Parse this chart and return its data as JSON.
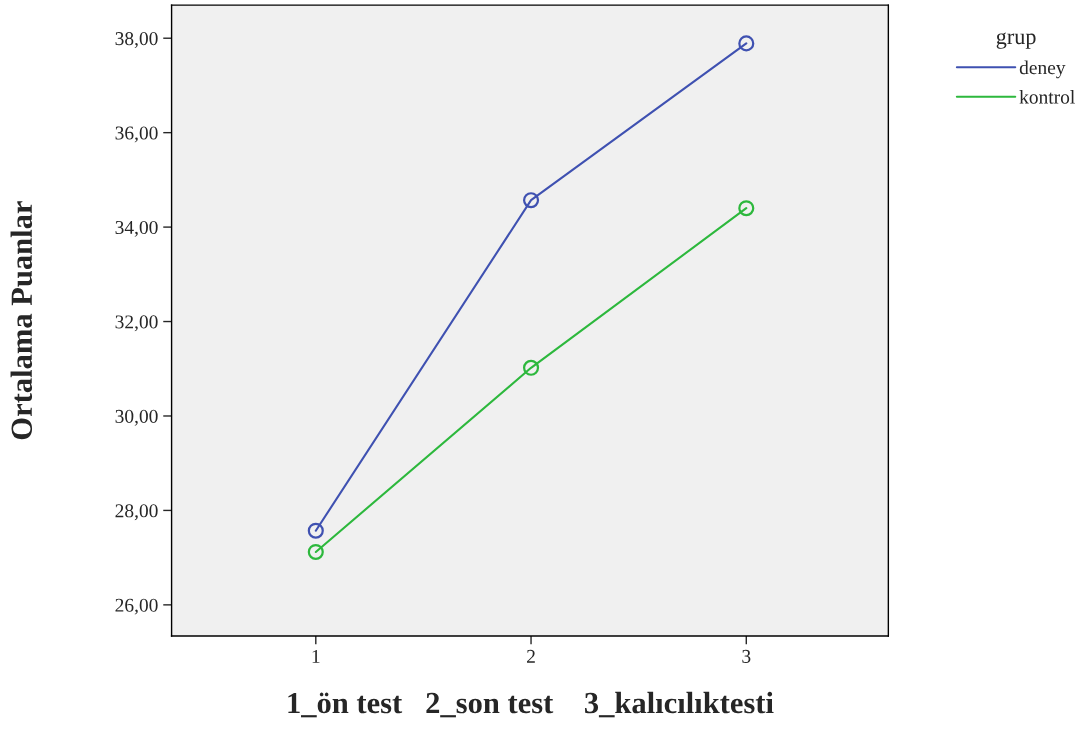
{
  "chart_data": {
    "type": "line",
    "xlabel": "1_ön test   2_son test    3_kalıcılıktesti",
    "ylabel": "Ortalama Puanlar",
    "legend_title": "grup",
    "x": [
      1,
      2,
      3
    ],
    "series": [
      {
        "name": "deney",
        "color": "#3f51b1",
        "values": [
          27.57,
          34.57,
          37.89
        ]
      },
      {
        "name": "kontrol",
        "color": "#2db83d",
        "values": [
          27.12,
          31.02,
          34.4
        ]
      }
    ],
    "xlim": [
      0.33,
      3.66
    ],
    "xticks": [
      1,
      2,
      3
    ],
    "ylim": [
      25.34,
      38.7
    ],
    "yticks": [
      {
        "value": 26,
        "label": "26,00"
      },
      {
        "value": 28,
        "label": "28,00"
      },
      {
        "value": 30,
        "label": "30,00"
      },
      {
        "value": 32,
        "label": "32,00"
      },
      {
        "value": 34,
        "label": "34,00"
      },
      {
        "value": 36,
        "label": "36,00"
      },
      {
        "value": 38,
        "label": "38,00"
      }
    ],
    "marker": "circle",
    "line_style": "solid",
    "grid": false,
    "legend": "top right"
  }
}
